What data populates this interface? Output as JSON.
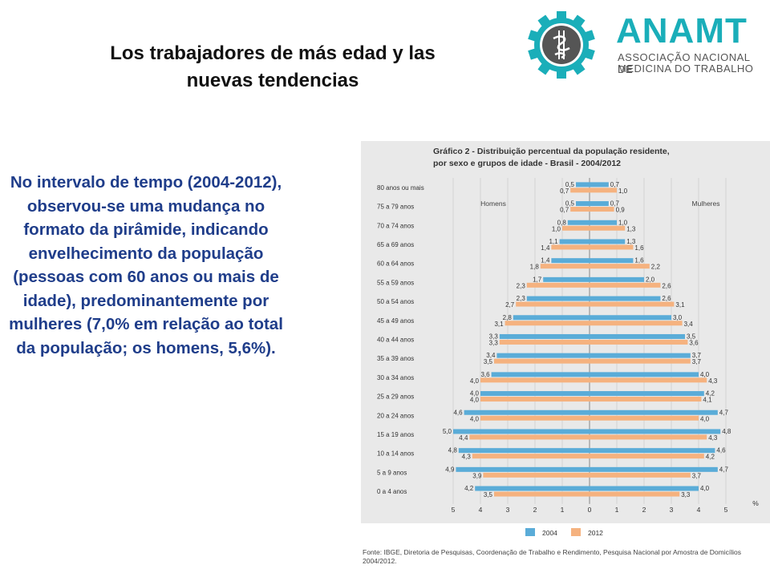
{
  "slide": {
    "title_line1": "Los trabajadores de más edad y las",
    "title_line2": "nuevas tendencias",
    "body": "No intervalo de tempo (2004-2012), observou-se uma mudança no formato da pirâmide, indicando envelhecimento da população (pessoas com 60 anos ou mais de idade), predominantemente por mulheres (7,0% em relação ao total da população; os homens, 5,6%)."
  },
  "logo": {
    "name": "ANAMT",
    "subtitle_line1": "ASSOCIAÇÃO NACIONAL DE",
    "subtitle_line2": "MEDICINA DO TRABALHO",
    "colors": {
      "gear": "#1aaeb9",
      "inner": "#555555"
    }
  },
  "chart_data": {
    "type": "bar",
    "orientation": "horizontal-pyramid",
    "title_line1": "Gráfico 2 - Distribuição percentual da população residente,",
    "title_line2": "por sexo e grupos de idade - Brasil - 2004/2012",
    "left_label": "Homens",
    "right_label": "Mulheres",
    "unit_label": "%",
    "categories": [
      "80 anos ou mais",
      "75 a 79 anos",
      "70 a 74 anos",
      "65 a 69 anos",
      "60 a 64 anos",
      "55 a 59 anos",
      "50 a 54 anos",
      "45 a 49 anos",
      "40 a 44 anos",
      "35 a 39 anos",
      "30 a 34 anos",
      "25 a 29 anos",
      "20 a 24 anos",
      "15 a 19 anos",
      "10 a 14 anos",
      "5 a 9 anos",
      "0 a 4 anos"
    ],
    "series": [
      {
        "name": "2004",
        "color": "#5aacd8",
        "men": [
          0.5,
          0.5,
          0.8,
          1.1,
          1.4,
          1.7,
          2.3,
          2.8,
          3.3,
          3.4,
          3.6,
          4.0,
          4.6,
          5.0,
          4.8,
          4.9,
          4.2
        ],
        "women": [
          0.7,
          0.7,
          1.0,
          1.3,
          1.6,
          2.0,
          2.6,
          3.0,
          3.5,
          3.7,
          4.0,
          4.2,
          4.7,
          4.8,
          4.6,
          4.7,
          4.0
        ],
        "men_labels": [
          "0,5",
          "0,5",
          "0,8",
          "1,1",
          "1,4",
          "1,7",
          "2,3",
          "2,8",
          "3,3",
          "3,4",
          "3,6",
          "4,0",
          "4,6",
          "5,0",
          "4,8",
          "4,9",
          "4,2"
        ],
        "women_labels": [
          "0,7",
          "0,7",
          "1,0",
          "1,3",
          "1,6",
          "2,0",
          "2,6",
          "3,0",
          "3,5",
          "3,7",
          "4,0",
          "4,2",
          "4,7",
          "4,8",
          "4,6",
          "4,7",
          "4,0"
        ]
      },
      {
        "name": "2012",
        "color": "#f5b27f",
        "men": [
          0.7,
          0.7,
          1.0,
          1.4,
          1.8,
          2.3,
          2.7,
          3.1,
          3.3,
          3.5,
          4.0,
          4.0,
          4.0,
          4.4,
          4.3,
          3.9,
          3.5
        ],
        "women": [
          1.0,
          0.9,
          1.3,
          1.6,
          2.2,
          2.6,
          3.1,
          3.4,
          3.6,
          3.7,
          4.3,
          4.1,
          4.0,
          4.3,
          4.2,
          3.7,
          3.3
        ],
        "men_labels": [
          "0,7",
          "0,7",
          "1,0",
          "1,4",
          "1,8",
          "2,3",
          "2,7",
          "3,1",
          "3,3",
          "3,5",
          "4,0",
          "4,0",
          "4,0",
          "4,4",
          "4,3",
          "3,9",
          "3,5"
        ],
        "women_labels": [
          "1,0",
          "0,9",
          "1,3",
          "1,6",
          "2,2",
          "2,6",
          "3,1",
          "3,4",
          "3,6",
          "3,7",
          "4,3",
          "4,1",
          "4,0",
          "4,3",
          "4,2",
          "3,7",
          "3,3"
        ]
      }
    ],
    "x_ticks": [
      "5",
      "4",
      "3",
      "2",
      "1",
      "0",
      "1",
      "2",
      "3",
      "4",
      "5"
    ],
    "xlim": [
      -5,
      5
    ],
    "grid": true,
    "legend_position": "bottom-center",
    "source_line1": "Fonte: IBGE, Diretoria de Pesquisas, Coordenação de Trabalho e Rendimento, Pesquisa Nacional por Amostra de Domicílios",
    "source_line2": "2004/2012."
  }
}
